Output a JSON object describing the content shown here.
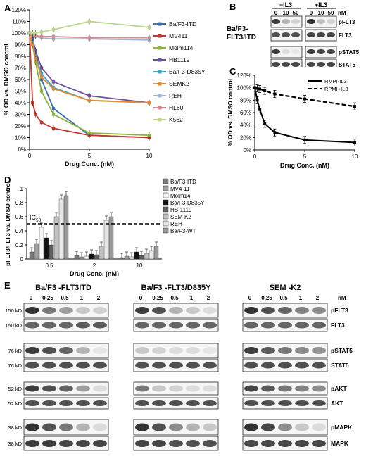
{
  "panels": {
    "A": {
      "letter": "A"
    },
    "B": {
      "letter": "B"
    },
    "C": {
      "letter": "C"
    },
    "D": {
      "letter": "D"
    },
    "E": {
      "letter": "E"
    }
  },
  "chart_data": [
    {
      "panel": "A",
      "type": "line",
      "ylabel": "% OD vs. DMSO control",
      "xlabel": "Drug Conc. (nM)",
      "ylim": [
        0,
        120
      ],
      "xlim": [
        0,
        10
      ],
      "xticks": [
        0,
        5,
        10
      ],
      "yticks": [
        "0%",
        "10%",
        "20%",
        "30%",
        "40%",
        "50%",
        "60%",
        "70%",
        "80%",
        "90%",
        "100%",
        "110%",
        "120%"
      ],
      "legend_position": "right",
      "series": [
        {
          "name": "Ba/F3-ITD",
          "color": "#3a6fb0",
          "x": [
            0,
            0.25,
            0.5,
            1,
            2,
            5,
            10
          ],
          "y": [
            100,
            95,
            85,
            60,
            35,
            12,
            10
          ]
        },
        {
          "name": "MV411",
          "color": "#c0392b",
          "x": [
            0,
            0.25,
            0.5,
            1,
            2,
            5,
            10
          ],
          "y": [
            100,
            40,
            30,
            23,
            18,
            12,
            10
          ]
        },
        {
          "name": "Molm114",
          "color": "#8db33a",
          "x": [
            0,
            0.25,
            0.5,
            1,
            2,
            5,
            10
          ],
          "y": [
            100,
            90,
            75,
            50,
            30,
            14,
            12
          ]
        },
        {
          "name": "HB1119",
          "color": "#6b4fa0",
          "x": [
            0,
            0.25,
            0.5,
            1,
            2,
            5,
            10
          ],
          "y": [
            100,
            95,
            85,
            70,
            58,
            46,
            40
          ]
        },
        {
          "name": "Ba/F3-D835Y",
          "color": "#3aa6c9",
          "x": [
            0,
            0.25,
            0.5,
            1,
            2,
            5,
            10
          ],
          "y": [
            100,
            92,
            80,
            65,
            53,
            42,
            40
          ]
        },
        {
          "name": "SEMK2",
          "color": "#e58a2e",
          "x": [
            0,
            0.25,
            0.5,
            1,
            2,
            5,
            10
          ],
          "y": [
            100,
            90,
            78,
            62,
            52,
            42,
            40
          ]
        },
        {
          "name": "REH",
          "color": "#9fb3d6",
          "x": [
            0,
            0.25,
            0.5,
            1,
            2,
            5,
            10
          ],
          "y": [
            100,
            98,
            97,
            96,
            95,
            95,
            94
          ]
        },
        {
          "name": "HL60",
          "color": "#d98a8a",
          "x": [
            0,
            0.25,
            0.5,
            1,
            2,
            5,
            10
          ],
          "y": [
            100,
            99,
            98,
            97,
            97,
            96,
            96
          ]
        },
        {
          "name": "K562",
          "color": "#b9d68a",
          "x": [
            0,
            0.25,
            0.5,
            1,
            2,
            5,
            10
          ],
          "y": [
            100,
            100,
            100,
            101,
            103,
            110,
            105
          ]
        }
      ]
    },
    {
      "panel": "C",
      "type": "line",
      "ylabel": "% OD vs. DMSO control",
      "xlabel": "Drug Conc. (nM)",
      "ylim": [
        0,
        120
      ],
      "xlim": [
        0,
        10
      ],
      "xticks": [
        0,
        5,
        10
      ],
      "yticks": [
        "0%",
        "20%",
        "40%",
        "60%",
        "80%",
        "100%",
        "120%"
      ],
      "legend_position": "top-right",
      "series": [
        {
          "name": "RMPI-IL3",
          "color": "#000000",
          "dash": false,
          "x": [
            0,
            0.25,
            0.5,
            1,
            2,
            5,
            10
          ],
          "y": [
            100,
            80,
            65,
            42,
            28,
            16,
            12
          ]
        },
        {
          "name": "RPMI+IL3",
          "color": "#000000",
          "dash": true,
          "x": [
            0,
            0.25,
            0.5,
            1,
            2,
            5,
            10
          ],
          "y": [
            100,
            99,
            98,
            95,
            90,
            82,
            70
          ]
        }
      ]
    },
    {
      "panel": "D",
      "type": "bar",
      "ylabel": "pFLT3/FLT3 vs. DMSO control",
      "xlabel": "Drug Conc. (nM)",
      "categories": [
        "0.5",
        "2",
        "10"
      ],
      "ylim": [
        0,
        1
      ],
      "yticks": [
        "0",
        "0.2",
        "0.4",
        "0.6",
        "0.8",
        "1"
      ],
      "annotation": "IC",
      "annotation_sub": "50",
      "threshold": 0.5,
      "legend_position": "top-right",
      "series": [
        {
          "name": "Ba/F3-ITD",
          "color": "#7a7a7a",
          "values": [
            0.1,
            0.05,
            0.02
          ]
        },
        {
          "name": "MV4-11",
          "color": "#a0a0a0",
          "values": [
            0.22,
            0.03,
            0.04
          ]
        },
        {
          "name": "Molm14",
          "color": "#f4f4f4",
          "values": [
            0.45,
            0.04,
            0.03
          ]
        },
        {
          "name": "Ba/F3-D835Y",
          "color": "#111111",
          "values": [
            0.3,
            0.07,
            0.1
          ]
        },
        {
          "name": "HB-1119",
          "color": "#5e5e5e",
          "values": [
            0.2,
            0.06,
            0.05
          ]
        },
        {
          "name": "SEM-K2",
          "color": "#c0c0c0",
          "values": [
            0.6,
            0.18,
            0.08
          ]
        },
        {
          "name": "REH",
          "color": "#e6e6e6",
          "values": [
            0.85,
            0.55,
            0.12
          ]
        },
        {
          "name": "Ba/F3-WT",
          "color": "#999999",
          "values": [
            0.9,
            0.6,
            0.18
          ]
        }
      ]
    }
  ],
  "panel_b": {
    "title_line1": "Ba/F3-",
    "title_line2": "FLT3/ITD",
    "groups": [
      "−IL3",
      "+IL3"
    ],
    "lanes": [
      "0",
      "10",
      "50",
      "0",
      "10",
      "50"
    ],
    "unit": "nM",
    "rows": [
      "pFLT3",
      "FLT3",
      "pSTAT5",
      "STAT5"
    ]
  },
  "panel_e": {
    "titles": [
      "Ba/F3 -FLT3ITD",
      "Ba/F3 -FLT3/D835Y",
      "SEM -K2"
    ],
    "lanes": [
      "0",
      "0.25",
      "0.5",
      "1",
      "2"
    ],
    "unit": "nM",
    "mw": [
      "150 kD",
      "150 kD",
      "76 kD",
      "76 kD",
      "52 kD",
      "52 kD",
      "38 kD",
      "38 kD"
    ],
    "rows": [
      "pFLT3",
      "FLT3",
      "pSTAT5",
      "STAT5",
      "pAKT",
      "AKT",
      "pMAPK",
      "MAPK"
    ]
  }
}
